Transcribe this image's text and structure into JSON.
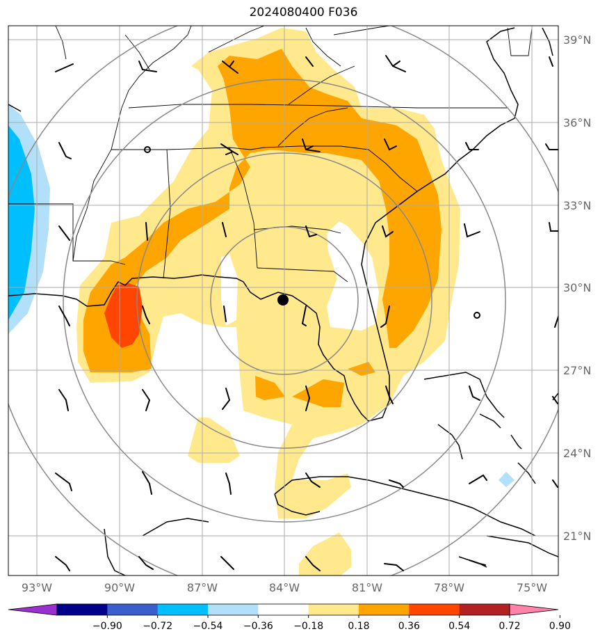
{
  "title": "2024080400 F036",
  "lon_labels": [
    "93°W",
    "90°W",
    "87°W",
    "84°W",
    "81°W",
    "78°W",
    "75°W"
  ],
  "lat_labels": [
    "39°N",
    "36°N",
    "33°N",
    "30°N",
    "27°N",
    "24°N",
    "21°N"
  ],
  "colorbar": {
    "colors": [
      "#9b30d0",
      "#00008b",
      "#3a5fcd",
      "#00bfff",
      "#b2e0fa",
      "#ffffff",
      "#ffe98c",
      "#ffa500",
      "#ff4500",
      "#b22222",
      "#ff82ab"
    ],
    "tick_labels": [
      "−0.90",
      "−0.72",
      "−0.54",
      "−0.36",
      "−0.18",
      "0.18",
      "0.36",
      "0.54",
      "0.72",
      "0.90"
    ]
  },
  "storm_center": {
    "lon": -84.0,
    "lat": 29.5
  }
}
